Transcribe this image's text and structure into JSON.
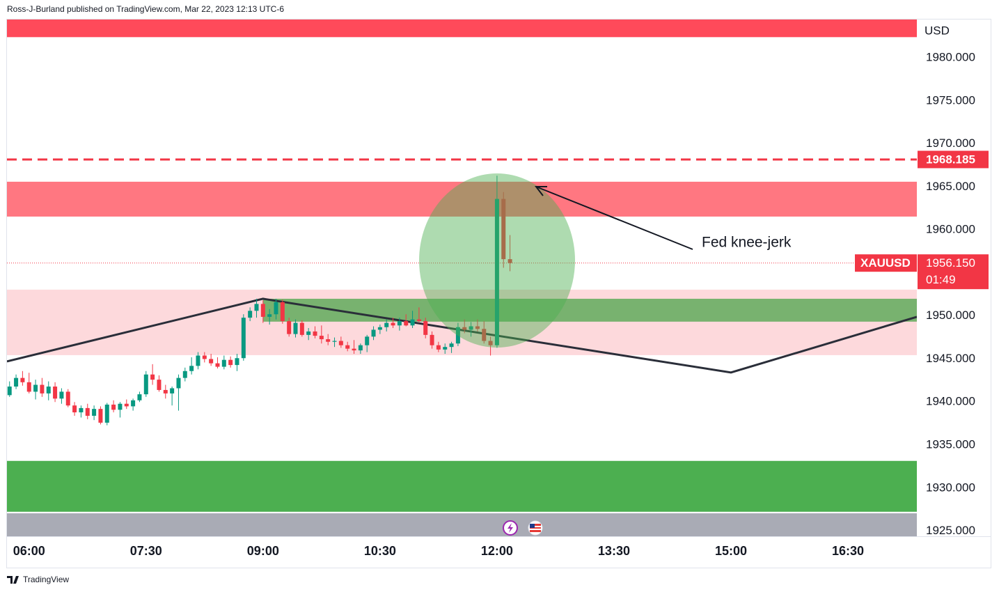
{
  "page": {
    "byline": "Ross-J-Burland published on TradingView.com, Mar 22, 2023 12:13 UTC-6",
    "brand": "TradingView"
  },
  "chart_data": {
    "type": "candlestick",
    "symbol": "XAUUSD",
    "currency": "USD",
    "up_color": "#089981",
    "down_color": "#f23645",
    "xlim": [
      "05:43",
      "17:23"
    ],
    "xticks": [
      "06:00",
      "07:30",
      "09:00",
      "10:30",
      "12:00",
      "13:30",
      "15:00",
      "16:30"
    ],
    "ylim": [
      1924.4,
      1984.45
    ],
    "yticks": [
      {
        "value": 1925,
        "label": "1925.000"
      },
      {
        "value": 1930,
        "label": "1930.000"
      },
      {
        "value": 1935,
        "label": "1935.000"
      },
      {
        "value": 1940,
        "label": "1940.000"
      },
      {
        "value": 1945,
        "label": "1945.000"
      },
      {
        "value": 1950,
        "label": "1950.000"
      },
      {
        "value": 1960,
        "label": "1960.000"
      },
      {
        "value": 1965,
        "label": "1965.000"
      },
      {
        "value": 1970,
        "label": "1970.000"
      },
      {
        "value": 1975,
        "label": "1975.000"
      },
      {
        "value": 1980,
        "label": "1980.000"
      }
    ],
    "grid": false,
    "x": [
      "05:45",
      "05:50",
      "05:55",
      "06:00",
      "06:05",
      "06:10",
      "06:15",
      "06:20",
      "06:25",
      "06:30",
      "06:35",
      "06:40",
      "06:45",
      "06:50",
      "06:55",
      "07:00",
      "07:05",
      "07:10",
      "07:15",
      "07:20",
      "07:25",
      "07:30",
      "07:35",
      "07:40",
      "07:45",
      "07:50",
      "07:55",
      "08:00",
      "08:05",
      "08:10",
      "08:15",
      "08:20",
      "08:25",
      "08:30",
      "08:35",
      "08:40",
      "08:45",
      "08:50",
      "08:55",
      "09:00",
      "09:05",
      "09:10",
      "09:15",
      "09:20",
      "09:25",
      "09:30",
      "09:35",
      "09:40",
      "09:45",
      "09:50",
      "09:55",
      "10:00",
      "10:05",
      "10:10",
      "10:15",
      "10:20",
      "10:25",
      "10:30",
      "10:35",
      "10:40",
      "10:45",
      "10:50",
      "10:55",
      "11:00",
      "11:05",
      "11:10",
      "11:15",
      "11:20",
      "11:25",
      "11:30",
      "11:35",
      "11:40",
      "11:45",
      "11:50",
      "11:55",
      "12:00",
      "12:05",
      "12:10"
    ],
    "open": [
      1940.8,
      1941.8,
      1942.8,
      1942.3,
      1941.2,
      1942.0,
      1941.0,
      1941.8,
      1940.4,
      1941.2,
      1939.6,
      1938.8,
      1939.3,
      1938.4,
      1939.2,
      1937.6,
      1939.7,
      1939.1,
      1939.8,
      1939.5,
      1940.2,
      1940.9,
      1943.2,
      1942.6,
      1941.4,
      1941.0,
      1941.6,
      1942.8,
      1943.6,
      1944.2,
      1945.4,
      1945.0,
      1944.5,
      1944.1,
      1944.9,
      1944.3,
      1945.1,
      1949.8,
      1950.6,
      1951.4,
      1949.9,
      1950.2,
      1951.6,
      1949.4,
      1947.9,
      1949.2,
      1947.8,
      1948.2,
      1947.7,
      1947.3,
      1947.0,
      1947.1,
      1946.6,
      1946.2,
      1946.0,
      1946.6,
      1947.6,
      1948.4,
      1948.7,
      1949.2,
      1948.9,
      1949.4,
      1948.9,
      1949.6,
      1949.4,
      1947.8,
      1946.6,
      1946.1,
      1946.4,
      1946.8,
      1948.7,
      1948.4,
      1948.8,
      1948.5,
      1947.1,
      1946.6,
      1963.6,
      1956.6
    ],
    "high": [
      1942.4,
      1943.2,
      1943.6,
      1943.4,
      1942.6,
      1942.8,
      1942.4,
      1942.3,
      1941.6,
      1941.5,
      1940.0,
      1939.6,
      1939.8,
      1939.6,
      1939.5,
      1939.9,
      1940.2,
      1940.0,
      1940.3,
      1940.4,
      1941.2,
      1943.6,
      1944.4,
      1943.1,
      1942.0,
      1941.8,
      1943.2,
      1944.0,
      1945.2,
      1945.8,
      1945.8,
      1945.6,
      1945.2,
      1945.4,
      1945.3,
      1945.6,
      1950.2,
      1951.0,
      1952.0,
      1951.8,
      1950.8,
      1952.0,
      1951.9,
      1949.8,
      1949.6,
      1949.5,
      1948.6,
      1948.8,
      1948.9,
      1947.9,
      1947.5,
      1947.6,
      1947.0,
      1947.2,
      1946.8,
      1947.8,
      1948.8,
      1949.0,
      1949.6,
      1949.8,
      1949.8,
      1950.2,
      1950.6,
      1951.0,
      1949.8,
      1948.2,
      1947.0,
      1946.8,
      1947.0,
      1949.2,
      1949.6,
      1949.3,
      1949.6,
      1949.4,
      1947.6,
      1966.3,
      1964.4,
      1959.4
    ],
    "low": [
      1940.6,
      1941.5,
      1941.9,
      1941.0,
      1940.3,
      1940.6,
      1940.2,
      1940.0,
      1939.8,
      1939.4,
      1938.4,
      1938.2,
      1938.0,
      1937.9,
      1937.4,
      1937.3,
      1938.8,
      1938.2,
      1939.2,
      1939.0,
      1940.0,
      1940.6,
      1942.0,
      1941.2,
      1940.4,
      1939.6,
      1939.0,
      1942.4,
      1943.2,
      1943.8,
      1944.6,
      1944.2,
      1943.9,
      1943.8,
      1944.0,
      1943.6,
      1944.8,
      1949.4,
      1949.8,
      1949.2,
      1949.0,
      1949.6,
      1949.1,
      1947.6,
      1947.5,
      1947.6,
      1947.2,
      1947.4,
      1946.8,
      1946.6,
      1946.4,
      1946.3,
      1945.9,
      1945.6,
      1945.6,
      1945.8,
      1947.2,
      1947.9,
      1948.2,
      1948.6,
      1948.3,
      1948.8,
      1948.6,
      1949.2,
      1947.4,
      1946.2,
      1945.8,
      1945.6,
      1945.7,
      1946.5,
      1948.0,
      1947.6,
      1948.2,
      1946.8,
      1945.4,
      1946.3,
      1955.6,
      1955.2
    ],
    "close": [
      1941.8,
      1942.8,
      1942.3,
      1941.2,
      1942.0,
      1941.0,
      1941.8,
      1940.4,
      1941.2,
      1939.6,
      1938.8,
      1939.3,
      1938.4,
      1939.2,
      1937.6,
      1939.7,
      1939.1,
      1939.8,
      1939.5,
      1940.2,
      1940.9,
      1943.2,
      1942.6,
      1941.4,
      1941.0,
      1941.6,
      1942.8,
      1943.6,
      1944.2,
      1945.4,
      1945.0,
      1944.5,
      1944.1,
      1944.9,
      1944.3,
      1945.1,
      1949.8,
      1950.6,
      1951.4,
      1949.9,
      1950.2,
      1951.6,
      1949.4,
      1947.9,
      1949.2,
      1947.8,
      1948.2,
      1947.7,
      1947.3,
      1947.0,
      1947.1,
      1946.6,
      1946.2,
      1946.0,
      1946.6,
      1947.6,
      1948.4,
      1948.7,
      1949.2,
      1948.9,
      1949.4,
      1948.9,
      1949.6,
      1949.4,
      1947.8,
      1946.6,
      1946.1,
      1946.4,
      1946.8,
      1948.7,
      1948.4,
      1948.8,
      1948.5,
      1947.1,
      1946.6,
      1963.6,
      1956.6,
      1956.15
    ],
    "zones": [
      {
        "from": 1982.4,
        "to": 1984.45,
        "color": "#ff4a5a"
      },
      {
        "from": 1961.55,
        "to": 1965.6,
        "color": "#ff7781"
      },
      {
        "from": 1945.45,
        "to": 1953.06,
        "color": "#fdd9dc"
      },
      {
        "from": 1949.34,
        "to": 1952.0,
        "color": "#78b26f",
        "start": "09:00"
      },
      {
        "from": 1927.25,
        "to": 1933.16,
        "color": "#4caf50"
      }
    ],
    "trendline": {
      "x": [
        "05:43",
        "09:00",
        "15:00",
        "17:23"
      ],
      "values": [
        1944.72,
        1952.0,
        1943.43,
        1949.9
      ],
      "color": "#2a2e39"
    },
    "price_lines": [
      {
        "value": 1968.185,
        "color": "#f23645",
        "style": "dashed"
      }
    ],
    "last_price": {
      "value": 1956.15,
      "label": "1956.150",
      "countdown": "01:49",
      "color": "#f23645"
    },
    "annotations": [
      {
        "text": "Fed knee-jerk"
      }
    ]
  }
}
